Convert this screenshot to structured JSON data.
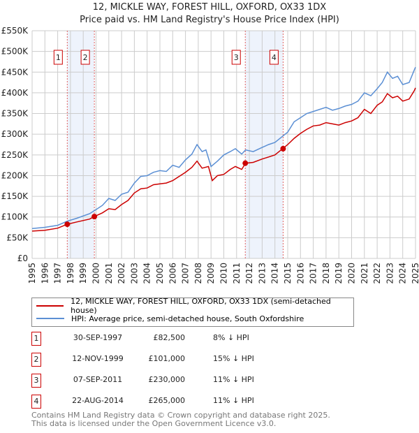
{
  "chart_data": {
    "type": "line",
    "title": "12, MICKLE WAY, FOREST HILL, OXFORD, OX33 1DX",
    "subtitle": "Price paid vs. HM Land Registry's House Price Index (HPI)",
    "xlim": [
      1995,
      2025
    ],
    "ylim": [
      0,
      550000
    ],
    "yticks": [
      0,
      50000,
      100000,
      150000,
      200000,
      250000,
      300000,
      350000,
      400000,
      450000,
      500000,
      550000
    ],
    "ytick_labels": [
      "£0",
      "£50K",
      "£100K",
      "£150K",
      "£200K",
      "£250K",
      "£300K",
      "£350K",
      "£400K",
      "£450K",
      "£500K",
      "£550K"
    ],
    "xticks": [
      "1995",
      "1996",
      "1997",
      "1998",
      "1999",
      "2000",
      "2001",
      "2002",
      "2003",
      "2004",
      "2005",
      "2006",
      "2007",
      "2008",
      "2009",
      "2010",
      "2011",
      "2012",
      "2013",
      "2014",
      "2015",
      "2016",
      "2017",
      "2018",
      "2019",
      "2020",
      "2021",
      "2022",
      "2023",
      "2024",
      "2025"
    ],
    "grid": true,
    "series": [
      {
        "name": "12, MICKLE WAY, FOREST HILL, OXFORD, OX33 1DX (semi-detached house)",
        "color": "#cc0000",
        "x": [
          1995,
          1996,
          1997,
          1997.75,
          1998.5,
          1999.5,
          1999.87,
          2000.5,
          2001,
          2001.5,
          2002,
          2002.5,
          2003,
          2003.5,
          2004,
          2004.5,
          2005,
          2005.5,
          2006,
          2006.5,
          2007,
          2007.5,
          2007.9,
          2008.3,
          2008.8,
          2009.1,
          2009.5,
          2010,
          2010.5,
          2010.9,
          2011.4,
          2011.7,
          2012.3,
          2013,
          2013.5,
          2014,
          2014.6,
          2015,
          2015.5,
          2016,
          2016.5,
          2017,
          2017.5,
          2018,
          2018.5,
          2019,
          2019.5,
          2020,
          2020.5,
          2021,
          2021.5,
          2022,
          2022.4,
          2022.8,
          2023.2,
          2023.6,
          2024,
          2024.5,
          2024.9,
          2025
        ],
        "y": [
          66000,
          68000,
          73000,
          82500,
          88000,
          95000,
          101000,
          110000,
          120000,
          118000,
          130000,
          140000,
          158000,
          168000,
          170000,
          178000,
          180000,
          182000,
          188000,
          198000,
          208000,
          220000,
          235000,
          218000,
          222000,
          188000,
          200000,
          203000,
          215000,
          222000,
          215000,
          230000,
          232000,
          240000,
          245000,
          250000,
          265000,
          275000,
          290000,
          302000,
          312000,
          320000,
          322000,
          328000,
          325000,
          322000,
          328000,
          332000,
          340000,
          360000,
          350000,
          370000,
          378000,
          398000,
          388000,
          392000,
          380000,
          385000,
          405000,
          412000
        ]
      },
      {
        "name": "HPI: Average price, semi-detached house, South Oxfordshire",
        "color": "#5b8fd4",
        "x": [
          1995,
          1996,
          1997,
          1997.75,
          1998.5,
          1999.5,
          2000,
          2000.5,
          2001,
          2001.5,
          2002,
          2002.5,
          2003,
          2003.5,
          2004,
          2004.5,
          2005,
          2005.5,
          2006,
          2006.5,
          2007,
          2007.5,
          2007.9,
          2008.3,
          2008.6,
          2009.0,
          2009.5,
          2010,
          2010.5,
          2010.9,
          2011.4,
          2011.7,
          2012.3,
          2013,
          2013.5,
          2014,
          2014.6,
          2015,
          2015.5,
          2016,
          2016.5,
          2017,
          2017.5,
          2018,
          2018.5,
          2019,
          2019.5,
          2020,
          2020.5,
          2021,
          2021.5,
          2022,
          2022.4,
          2022.8,
          2023.2,
          2023.6,
          2024,
          2024.5,
          2024.9,
          2025
        ],
        "y": [
          72000,
          75000,
          80000,
          90000,
          97000,
          108000,
          118000,
          128000,
          145000,
          140000,
          155000,
          160000,
          182000,
          198000,
          200000,
          208000,
          212000,
          210000,
          225000,
          220000,
          238000,
          252000,
          275000,
          258000,
          262000,
          222000,
          235000,
          250000,
          258000,
          265000,
          252000,
          262000,
          258000,
          268000,
          275000,
          280000,
          295000,
          305000,
          330000,
          340000,
          350000,
          355000,
          360000,
          365000,
          358000,
          362000,
          368000,
          372000,
          380000,
          400000,
          393000,
          410000,
          425000,
          450000,
          435000,
          440000,
          420000,
          425000,
          455000,
          462000
        ]
      }
    ],
    "annotations": [
      {
        "label": "1",
        "x": 1997.75,
        "y": 82500
      },
      {
        "label": "2",
        "x": 1999.87,
        "y": 101000
      },
      {
        "label": "3",
        "x": 2011.68,
        "y": 230000
      },
      {
        "label": "4",
        "x": 2014.64,
        "y": 265000
      }
    ]
  },
  "header": {
    "title": "12, MICKLE WAY, FOREST HILL, OXFORD, OX33 1DX",
    "subtitle": "Price paid vs. HM Land Registry's House Price Index (HPI)"
  },
  "legend": [
    {
      "label": "12, MICKLE WAY, FOREST HILL, OXFORD, OX33 1DX (semi-detached house)",
      "color": "#cc0000"
    },
    {
      "label": "HPI: Average price, semi-detached house, South Oxfordshire",
      "color": "#5b8fd4"
    }
  ],
  "sales": [
    {
      "num": "1",
      "date": "30-SEP-1997",
      "price": "£82,500",
      "hpi": "8% ↓ HPI"
    },
    {
      "num": "2",
      "date": "12-NOV-1999",
      "price": "£101,000",
      "hpi": "15% ↓ HPI"
    },
    {
      "num": "3",
      "date": "07-SEP-2011",
      "price": "£230,000",
      "hpi": "11% ↓ HPI"
    },
    {
      "num": "4",
      "date": "22-AUG-2014",
      "price": "£265,000",
      "hpi": "11% ↓ HPI"
    }
  ],
  "footer": {
    "line1": "Contains HM Land Registry data © Crown copyright and database right 2025.",
    "line2": "This data is licensed under the Open Government Licence v3.0."
  }
}
